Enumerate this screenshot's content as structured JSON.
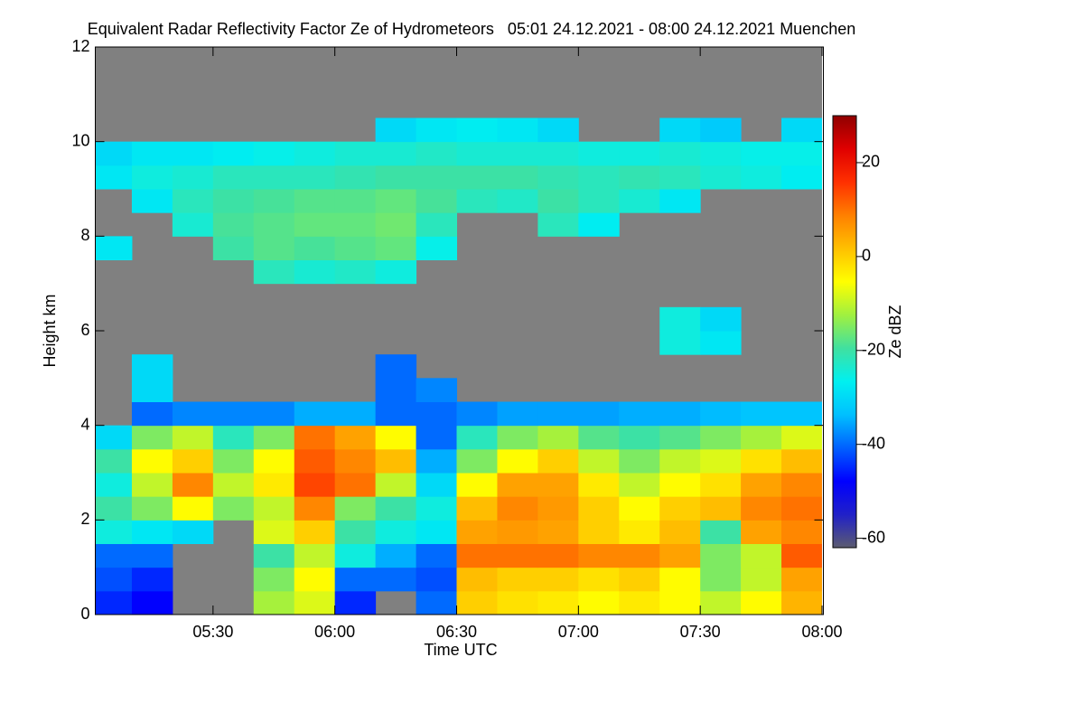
{
  "chart_data": {
    "type": "heatmap",
    "title": "Equivalent Radar Reflectivity Factor Ze of Hydrometeors   05:01 24.12.2021 - 08:00 24.12.2021 Muenchen",
    "xlabel": "Time UTC",
    "ylabel": "Height km",
    "zlabel": "Ze dBZ",
    "xlim": [
      301,
      480
    ],
    "ylim": [
      0,
      12
    ],
    "zlim": [
      -62,
      30
    ],
    "xticks": [
      {
        "value": 330,
        "label": "05:30"
      },
      {
        "value": 360,
        "label": "06:00"
      },
      {
        "value": 390,
        "label": "06:30"
      },
      {
        "value": 420,
        "label": "07:00"
      },
      {
        "value": 450,
        "label": "07:30"
      },
      {
        "value": 480,
        "label": "08:00"
      }
    ],
    "yticks": [
      0,
      2,
      4,
      6,
      8,
      10,
      12
    ],
    "zticks": [
      -60,
      -40,
      -20,
      0,
      20
    ],
    "background": "#808080",
    "colors": [
      "#5c5c70",
      "#2020c8",
      "#0000ff",
      "#0060ff",
      "#00c0ff",
      "#00f0f0",
      "#40e0a0",
      "#a0f040",
      "#ffff00",
      "#ffc000",
      "#ff8000",
      "#ff3000",
      "#e00000",
      "#900000"
    ],
    "xbins": [
      300,
      310,
      320,
      330,
      340,
      350,
      360,
      370,
      380,
      390,
      400,
      410,
      420,
      430,
      440,
      450,
      460,
      470,
      480
    ],
    "ybins": [
      0,
      0.5,
      1,
      1.5,
      2,
      2.5,
      3,
      3.5,
      4,
      4.5,
      5,
      5.5,
      6,
      6.5,
      7,
      7.5,
      8,
      8.5,
      9,
      9.5,
      10,
      10.5,
      11,
      11.5,
      12
    ],
    "z": [
      [
        -45,
        -48,
        null,
        null,
        -12,
        -8,
        -45,
        null,
        -40,
        0,
        -2,
        -3,
        -5,
        -3,
        -5,
        -10,
        -5,
        3
      ],
      [
        -42,
        -45,
        null,
        null,
        -15,
        -5,
        -40,
        -40,
        -42,
        2,
        0,
        0,
        -2,
        0,
        -5,
        -15,
        -10,
        5
      ],
      [
        -40,
        -40,
        null,
        null,
        -20,
        -10,
        -25,
        -35,
        -40,
        10,
        10,
        10,
        8,
        8,
        5,
        -15,
        -10,
        12
      ],
      [
        -25,
        -28,
        -30,
        null,
        -8,
        0,
        -20,
        -25,
        -28,
        5,
        6,
        5,
        0,
        -3,
        2,
        -20,
        5,
        8
      ],
      [
        -20,
        -15,
        -5,
        -15,
        -10,
        8,
        -15,
        -20,
        -25,
        2,
        8,
        6,
        0,
        -5,
        0,
        2,
        8,
        10
      ],
      [
        -25,
        -10,
        8,
        -10,
        -3,
        14,
        10,
        -10,
        -30,
        -5,
        5,
        5,
        -3,
        -10,
        -5,
        -2,
        5,
        8
      ],
      [
        -20,
        -5,
        0,
        -15,
        -5,
        12,
        8,
        2,
        -35,
        -15,
        -5,
        0,
        -10,
        -15,
        -10,
        -8,
        -2,
        2
      ],
      [
        -30,
        -15,
        -10,
        -22,
        -15,
        10,
        5,
        -5,
        -40,
        -22,
        -15,
        -12,
        -18,
        -20,
        -18,
        -15,
        -12,
        -8
      ],
      [
        null,
        -40,
        -38,
        -38,
        -38,
        -35,
        -35,
        -40,
        -40,
        -38,
        -36,
        -36,
        -36,
        -35,
        -35,
        -34,
        -33,
        -33
      ],
      [
        null,
        -30,
        null,
        null,
        null,
        null,
        null,
        -40,
        -38,
        null,
        null,
        null,
        null,
        null,
        null,
        null,
        null,
        null
      ],
      [
        null,
        -30,
        null,
        null,
        null,
        null,
        null,
        -40,
        null,
        null,
        null,
        null,
        null,
        null,
        null,
        null,
        null,
        null
      ],
      [
        null,
        null,
        null,
        null,
        null,
        null,
        null,
        null,
        null,
        null,
        null,
        null,
        null,
        null,
        -25,
        -28,
        null,
        null
      ],
      [
        null,
        null,
        null,
        null,
        null,
        null,
        null,
        null,
        null,
        null,
        null,
        null,
        null,
        null,
        -25,
        -30,
        null,
        null
      ],
      [
        null,
        null,
        null,
        null,
        null,
        null,
        null,
        null,
        null,
        null,
        null,
        null,
        null,
        null,
        null,
        null,
        null,
        null
      ],
      [
        null,
        null,
        null,
        null,
        -22,
        -24,
        -23,
        -25,
        null,
        null,
        null,
        null,
        null,
        null,
        null,
        null,
        null,
        null
      ],
      [
        -28,
        null,
        null,
        -20,
        -18,
        -19,
        -18,
        -17,
        -26,
        null,
        null,
        null,
        null,
        null,
        null,
        null,
        null,
        null
      ],
      [
        null,
        null,
        -24,
        -19,
        -18,
        -17,
        -17,
        -16,
        -22,
        null,
        null,
        -22,
        -27,
        null,
        null,
        null,
        null,
        null
      ],
      [
        null,
        -28,
        -22,
        -20,
        -19,
        -18,
        -18,
        -17,
        -19,
        -22,
        -23,
        -20,
        -22,
        -24,
        -28,
        null,
        null,
        null
      ],
      [
        -28,
        -25,
        -24,
        -22,
        -22,
        -22,
        -21,
        -20,
        -20,
        -20,
        -20,
        -21,
        -22,
        -21,
        -22,
        -24,
        -25,
        -27
      ],
      [
        -30,
        -28,
        -28,
        -27,
        -26,
        -25,
        -24,
        -24,
        -23,
        -24,
        -24,
        -24,
        -25,
        -25,
        -24,
        -25,
        -26,
        -26
      ],
      [
        null,
        null,
        null,
        null,
        null,
        null,
        null,
        -30,
        -28,
        -27,
        -28,
        -30,
        null,
        null,
        -30,
        -32,
        null,
        -30
      ],
      [
        null,
        null,
        null,
        null,
        null,
        null,
        null,
        null,
        null,
        null,
        null,
        null,
        null,
        null,
        null,
        null,
        null,
        null
      ],
      [
        null,
        null,
        null,
        null,
        null,
        null,
        null,
        null,
        null,
        null,
        null,
        null,
        null,
        null,
        null,
        null,
        null,
        null
      ],
      [
        null,
        null,
        null,
        null,
        null,
        null,
        null,
        null,
        null,
        null,
        null,
        null,
        null,
        null,
        null,
        null,
        null,
        null
      ]
    ]
  }
}
